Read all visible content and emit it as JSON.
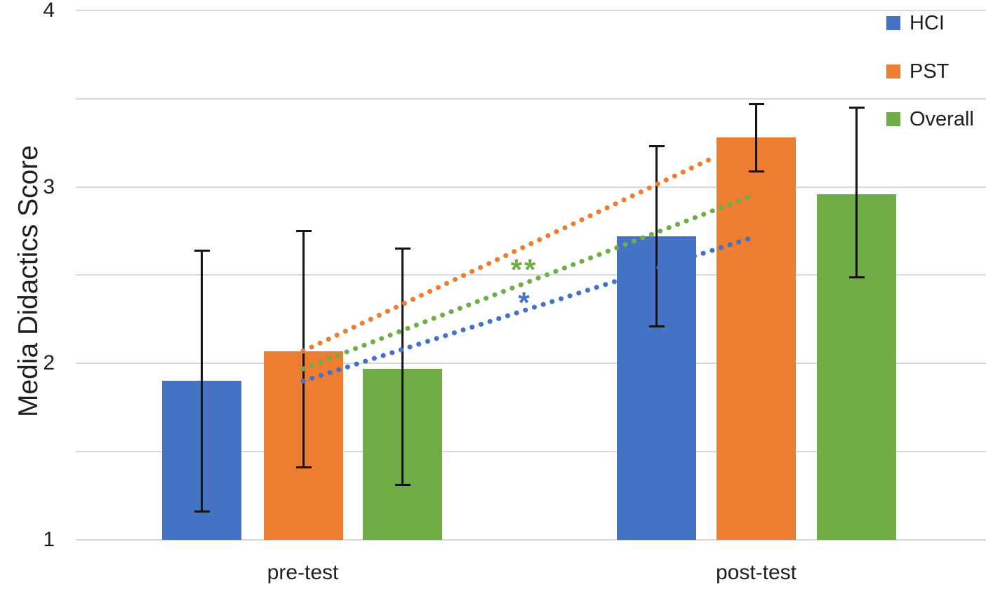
{
  "chart_data": {
    "type": "bar",
    "title": "",
    "ylabel": "Media Didactics Score",
    "xlabel": "",
    "categories": [
      "pre-test",
      "post-test"
    ],
    "series": [
      {
        "name": "HCI",
        "color": "#4472C4",
        "values": [
          1.9,
          2.72
        ],
        "error_low": [
          1.16,
          2.21
        ],
        "error_high": [
          2.64,
          3.23
        ]
      },
      {
        "name": "PST",
        "color": "#ED7D31",
        "values": [
          2.07,
          3.28
        ],
        "error_low": [
          1.41,
          3.09
        ],
        "error_high": [
          2.75,
          3.47
        ]
      },
      {
        "name": "Overall",
        "color": "#70AD47",
        "values": [
          1.97,
          2.96
        ],
        "error_low": [
          1.31,
          2.49
        ],
        "error_high": [
          2.65,
          3.45
        ]
      }
    ],
    "trend_lines": [
      {
        "series": "HCI",
        "style": "dotted",
        "from_value": 1.9,
        "to_value": 2.72
      },
      {
        "series": "PST",
        "style": "dotted",
        "from_value": 2.07,
        "to_value": 3.28
      },
      {
        "series": "Overall",
        "style": "dotted",
        "from_value": 1.97,
        "to_value": 2.96
      }
    ],
    "annotations": [
      {
        "text": "**",
        "series": "Overall",
        "color": "#70AD47"
      },
      {
        "text": "*",
        "series": "HCI",
        "color": "#4472C4"
      }
    ],
    "ylim": [
      1,
      4
    ],
    "yticks": [
      4,
      3,
      2,
      1
    ],
    "gridline_interval": 0.5,
    "grid": true,
    "legend_position": "top-right",
    "error_bar_color": "#141414",
    "gridline_color": "#d9d9d9"
  }
}
